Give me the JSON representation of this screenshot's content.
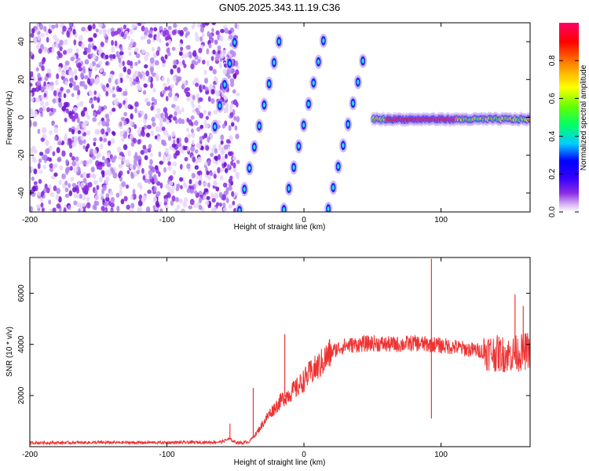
{
  "title": "GN05.2025.343.11.19.C36",
  "chart_data": [
    {
      "type": "heatmap",
      "title": "GN05.2025.343.11.19.C36",
      "xlabel": "Height of straight line (km)",
      "ylabel": "Frequency (Hz)",
      "xlim": [
        -200,
        165
      ],
      "ylim": [
        -50,
        50
      ],
      "x_ticks": [
        -200,
        -100,
        0,
        100
      ],
      "x_tick_labels": [
        "-200",
        "-100",
        "0",
        "100"
      ],
      "y_ticks": [
        -40,
        -20,
        0,
        20,
        40
      ],
      "y_tick_labels": [
        "-40",
        "-20",
        "0",
        "20",
        "40"
      ],
      "grid": false,
      "colorbar": {
        "label": "Normalized spectral amplitude",
        "range": [
          0,
          1
        ],
        "ticks": [
          0,
          0.2,
          0.4,
          0.6,
          0.8
        ],
        "tick_labels": [
          "0.0",
          "0.2",
          "0.4",
          "0.6",
          "0.8"
        ],
        "colors": [
          "#ffffff",
          "#d6b3f5",
          "#8a2be2",
          "#3300ff",
          "#0000ff",
          "#00ccff",
          "#00ff66",
          "#66ff00",
          "#ffff00",
          "#ff8800",
          "#ff0000",
          "#ff0066"
        ]
      },
      "regions": [
        {
          "name": "noise",
          "x_range": [
            -200,
            -48
          ],
          "y_range": [
            -50,
            50
          ],
          "amplitude": 0.1
        },
        {
          "name": "aliased line",
          "x_range": [
            -65,
            45
          ],
          "amplitude": 0.35
        },
        {
          "name": "steady line",
          "x_range": [
            50,
            165
          ],
          "y_center": -1,
          "amplitude": 0.9
        }
      ]
    },
    {
      "type": "line",
      "xlabel": "Height of straight line (km)",
      "ylabel": "SNR (10 * v/v)",
      "xlim": [
        -200,
        165
      ],
      "ylim": [
        0,
        7400
      ],
      "x_ticks": [
        -200,
        -100,
        0,
        100
      ],
      "x_tick_labels": [
        "-200",
        "-100",
        "0",
        "100"
      ],
      "y_ticks": [
        2000,
        4000,
        6000
      ],
      "y_tick_labels": [
        "2000",
        "4000",
        "6000"
      ],
      "grid": false,
      "line_color": "#ee3333",
      "x": [
        -200,
        -150,
        -100,
        -70,
        -60,
        -55,
        -50,
        -45,
        -40,
        -35,
        -30,
        -25,
        -20,
        -15,
        -10,
        -5,
        0,
        5,
        10,
        15,
        20,
        25,
        30,
        40,
        50,
        60,
        70,
        80,
        90,
        95,
        100,
        110,
        120,
        130,
        140,
        150,
        160,
        165
      ],
      "y": [
        150,
        160,
        160,
        170,
        190,
        300,
        180,
        150,
        200,
        500,
        900,
        1300,
        1600,
        1900,
        2100,
        2300,
        2600,
        2900,
        3100,
        3400,
        3700,
        3850,
        3950,
        4000,
        4050,
        4000,
        4000,
        4050,
        4000,
        4000,
        3950,
        3900,
        3800,
        3750,
        3650,
        3600,
        3700,
        3800
      ],
      "spikes": [
        {
          "x": -54,
          "y": 900
        },
        {
          "x": -37,
          "y": 2300
        },
        {
          "x": -14,
          "y": 4400
        },
        {
          "x": 93,
          "y": 7350
        },
        {
          "x": 93,
          "y": 1100
        },
        {
          "x": 154,
          "y": 5950
        },
        {
          "x": 160,
          "y": 5500
        }
      ]
    }
  ]
}
